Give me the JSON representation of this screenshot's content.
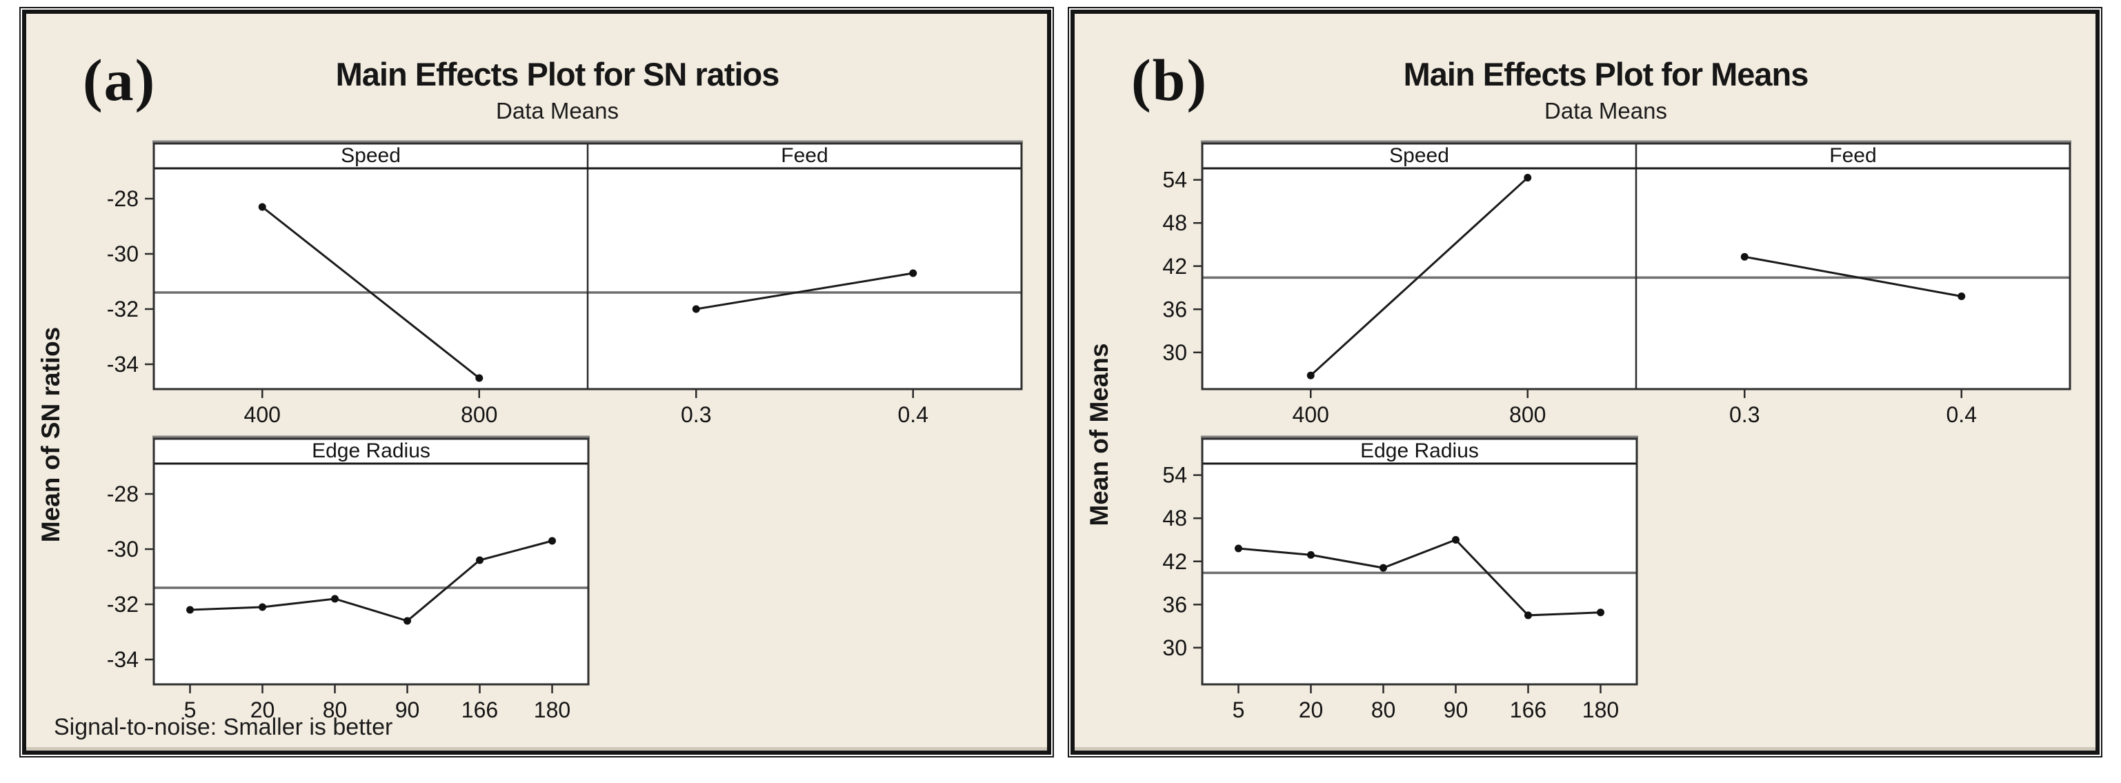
{
  "page": {
    "background": "#ffffff",
    "panel_background": "#F2ECE0",
    "panel_border": "#141414",
    "plot_background": "#ffffff",
    "plot_border": "#2e2e2e",
    "plot_top_shadow": "#828282",
    "reference_line_color": "#6e6e6e",
    "series_line_color": "#1a1a1a",
    "marker_color": "#111111",
    "text_color": "#141414"
  },
  "chart_data": [
    {
      "type": "line",
      "fig_label": "(a)",
      "title": "Main Effects Plot for SN ratios",
      "subtitle": "Data Means",
      "ylabel": "Mean of SN ratios",
      "footnote": "Signal-to-noise: Smaller is better",
      "legend_position": "none",
      "grid": "reference-line-only",
      "ylim": [
        -34.9,
        -26.9
      ],
      "yticks": [
        -28,
        -30,
        -32,
        -34
      ],
      "reference_line": -31.4,
      "panels": [
        {
          "row": 0,
          "factor": "Speed",
          "categories": [
            "400",
            "800"
          ],
          "values": [
            -28.3,
            -34.5
          ]
        },
        {
          "row": 0,
          "factor": "Feed",
          "categories": [
            "0.3",
            "0.4"
          ],
          "values": [
            -32.0,
            -30.7
          ]
        },
        {
          "row": 1,
          "factor": "Edge Radius",
          "categories": [
            "5",
            "20",
            "80",
            "90",
            "166",
            "180"
          ],
          "values": [
            -32.2,
            -32.1,
            -31.8,
            -32.6,
            -30.4,
            -29.7
          ]
        }
      ]
    },
    {
      "type": "line",
      "fig_label": "(b)",
      "title": "Main Effects Plot for Means",
      "subtitle": "Data Means",
      "ylabel": "Mean of Means",
      "footnote": "",
      "legend_position": "none",
      "grid": "reference-line-only",
      "ylim": [
        24.9,
        55.6
      ],
      "yticks": [
        54,
        48,
        42,
        36,
        30
      ],
      "reference_line": 40.4,
      "panels": [
        {
          "row": 0,
          "factor": "Speed",
          "categories": [
            "400",
            "800"
          ],
          "values": [
            26.8,
            54.3
          ]
        },
        {
          "row": 0,
          "factor": "Feed",
          "categories": [
            "0.3",
            "0.4"
          ],
          "values": [
            43.3,
            37.8
          ]
        },
        {
          "row": 1,
          "factor": "Edge Radius",
          "categories": [
            "5",
            "20",
            "80",
            "90",
            "166",
            "180"
          ],
          "values": [
            43.8,
            42.9,
            41.1,
            45.0,
            34.5,
            34.9
          ]
        }
      ]
    }
  ]
}
